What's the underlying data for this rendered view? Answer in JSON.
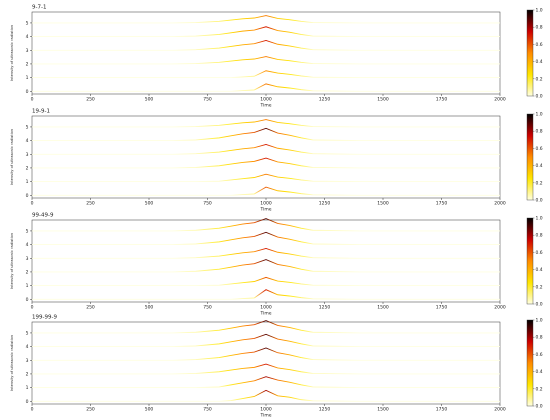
{
  "chart_data": [
    {
      "type": "line",
      "title": "9-7-1",
      "xlabel": "Time",
      "ylabel": "Intensity of ultrasonic radiation",
      "x": [
        0,
        200,
        400,
        600,
        700,
        800,
        850,
        900,
        950,
        1000,
        1050,
        1100,
        1150,
        1200,
        1400,
        1600,
        1800,
        2000
      ],
      "xlim": [
        0,
        2000
      ],
      "xticks": [
        0,
        250,
        500,
        750,
        1000,
        1250,
        1500,
        1750,
        2000
      ],
      "ylim": [
        -0.2,
        5.8
      ],
      "yticks": [
        0,
        1,
        2,
        3,
        4,
        5
      ],
      "colormap": [
        "#ffffe0",
        "#ffe600",
        "#ff8c00",
        "#cc0000",
        "#000000"
      ],
      "clim": [
        0,
        1
      ],
      "colorbar_ticks": [
        {
          "value": 0,
          "label": "0.0"
        },
        0.2,
        0.4,
        0.6,
        0.8,
        {
          "value": 1,
          "label": "1.0"
        }
      ],
      "series": [
        {
          "values": [
            5,
            5,
            5,
            5,
            5.03,
            5.12,
            5.21,
            5.3,
            5.36,
            5.54,
            5.33,
            5.24,
            5.12,
            5.03,
            5,
            5,
            5,
            5
          ]
        },
        {
          "values": [
            4,
            4,
            4,
            4,
            4.04,
            4.16,
            4.28,
            4.4,
            4.48,
            4.72,
            4.44,
            4.32,
            4.16,
            4.04,
            4,
            4,
            4,
            4
          ]
        },
        {
          "values": [
            3,
            3,
            3,
            3,
            3.04,
            3.16,
            3.28,
            3.4,
            3.48,
            3.72,
            3.44,
            3.32,
            3.16,
            3.04,
            3,
            3,
            3,
            3
          ]
        },
        {
          "values": [
            2,
            2,
            2,
            2,
            2.03,
            2.12,
            2.21,
            2.3,
            2.36,
            2.54,
            2.33,
            2.24,
            2.12,
            2.03,
            2,
            2,
            2,
            2
          ]
        },
        {
          "values": [
            1,
            1,
            1,
            1,
            1,
            1,
            1,
            1.05,
            1.1,
            1.5,
            1.33,
            1.24,
            1.12,
            1.03,
            1,
            1,
            1,
            1
          ]
        },
        {
          "values": [
            0,
            0,
            0,
            0,
            0,
            0,
            0,
            0.05,
            0.1,
            0.54,
            0.33,
            0.24,
            0.12,
            0.03,
            0,
            0,
            0,
            0
          ]
        }
      ]
    },
    {
      "type": "line",
      "title": "19-9-1",
      "xlabel": "Time",
      "ylabel": "Intensity of ultrasonic radiation",
      "x": [
        0,
        200,
        400,
        600,
        700,
        800,
        850,
        900,
        950,
        1000,
        1050,
        1100,
        1150,
        1200,
        1400,
        1600,
        1800,
        2000
      ],
      "xlim": [
        0,
        2000
      ],
      "xticks": [
        0,
        250,
        500,
        750,
        1000,
        1250,
        1500,
        1750,
        2000
      ],
      "ylim": [
        -0.2,
        5.8
      ],
      "yticks": [
        0,
        1,
        2,
        3,
        4,
        5
      ],
      "colormap": [
        "#ffffe0",
        "#ffe600",
        "#ff8c00",
        "#cc0000",
        "#000000"
      ],
      "clim": [
        0,
        1
      ],
      "colorbar_ticks": [
        {
          "value": 0,
          "label": "0.0"
        },
        0.2,
        0.4,
        0.6,
        0.8,
        {
          "value": 1,
          "label": "1.0"
        }
      ],
      "series": [
        {
          "values": [
            5,
            5,
            5,
            5,
            5.03,
            5.12,
            5.21,
            5.3,
            5.36,
            5.54,
            5.33,
            5.24,
            5.12,
            5.03,
            5,
            5,
            5,
            5
          ]
        },
        {
          "values": [
            4,
            4,
            4,
            4,
            4.05,
            4.2,
            4.35,
            4.5,
            4.6,
            4.9,
            4.55,
            4.4,
            4.2,
            4.05,
            4,
            4,
            4,
            4
          ]
        },
        {
          "values": [
            3,
            3,
            3,
            3,
            3.04,
            3.16,
            3.28,
            3.4,
            3.48,
            3.72,
            3.44,
            3.32,
            3.16,
            3.04,
            3,
            3,
            3,
            3
          ]
        },
        {
          "values": [
            2,
            2,
            2,
            2,
            2.04,
            2.16,
            2.28,
            2.4,
            2.48,
            2.72,
            2.44,
            2.32,
            2.16,
            2.04,
            2,
            2,
            2,
            2
          ]
        },
        {
          "values": [
            1,
            1,
            1,
            1,
            1,
            1.03,
            1.12,
            1.21,
            1.3,
            1.54,
            1.33,
            1.24,
            1.12,
            1.03,
            1,
            1,
            1,
            1
          ]
        },
        {
          "values": [
            0,
            0,
            0,
            0,
            0,
            0,
            0,
            0.05,
            0.1,
            0.6,
            0.33,
            0.24,
            0.12,
            0.03,
            0,
            0,
            0,
            0
          ]
        }
      ]
    },
    {
      "type": "line",
      "title": "99-49-9",
      "xlabel": "Time",
      "ylabel": "Intensity of ultrasonic radiation",
      "x": [
        0,
        200,
        400,
        600,
        700,
        800,
        850,
        900,
        950,
        1000,
        1050,
        1100,
        1150,
        1200,
        1400,
        1600,
        1800,
        2000
      ],
      "xlim": [
        0,
        2000
      ],
      "xticks": [
        0,
        250,
        500,
        750,
        1000,
        1250,
        1500,
        1750,
        2000
      ],
      "ylim": [
        -0.2,
        5.8
      ],
      "yticks": [
        0,
        1,
        2,
        3,
        4,
        5
      ],
      "colormap": [
        "#ffffe0",
        "#ffe600",
        "#ff8c00",
        "#cc0000",
        "#000000"
      ],
      "clim": [
        0,
        1
      ],
      "colorbar_ticks": [
        {
          "value": 0,
          "label": "0.0"
        },
        0.2,
        0.4,
        0.6,
        0.8,
        {
          "value": 1,
          "label": "1.0"
        }
      ],
      "series": [
        {
          "values": [
            5,
            5,
            5,
            5,
            5.05,
            5.2,
            5.35,
            5.5,
            5.6,
            5.9,
            5.55,
            5.4,
            5.2,
            5.05,
            5,
            5,
            5,
            5
          ]
        },
        {
          "values": [
            4,
            4,
            4,
            4,
            4.05,
            4.2,
            4.35,
            4.5,
            4.6,
            4.9,
            4.55,
            4.4,
            4.2,
            4.05,
            4,
            4,
            4,
            4
          ]
        },
        {
          "values": [
            3,
            3,
            3,
            3,
            3.04,
            3.16,
            3.28,
            3.4,
            3.48,
            3.72,
            3.44,
            3.32,
            3.16,
            3.04,
            3,
            3,
            3,
            3
          ]
        },
        {
          "values": [
            2,
            2,
            2,
            2,
            2.05,
            2.2,
            2.35,
            2.5,
            2.6,
            2.9,
            2.55,
            2.4,
            2.2,
            2.05,
            2,
            2,
            2,
            2
          ]
        },
        {
          "values": [
            1,
            1,
            1,
            1,
            1,
            1.03,
            1.12,
            1.21,
            1.3,
            1.6,
            1.33,
            1.24,
            1.12,
            1.03,
            1,
            1,
            1,
            1
          ]
        },
        {
          "values": [
            0,
            0,
            0,
            0,
            0,
            0,
            0,
            0.05,
            0.1,
            0.7,
            0.33,
            0.24,
            0.12,
            0.03,
            0,
            0,
            0,
            0
          ]
        }
      ]
    },
    {
      "type": "line",
      "title": "199-99-9",
      "xlabel": "Time",
      "ylabel": "Intensity of ultrasonic radiation",
      "x": [
        0,
        200,
        400,
        600,
        700,
        800,
        850,
        900,
        950,
        1000,
        1050,
        1100,
        1150,
        1200,
        1400,
        1600,
        1800,
        2000
      ],
      "xlim": [
        0,
        2000
      ],
      "xticks": [
        0,
        250,
        500,
        750,
        1000,
        1250,
        1500,
        1750,
        2000
      ],
      "ylim": [
        -0.2,
        5.8
      ],
      "yticks": [
        0,
        1,
        2,
        3,
        4,
        5
      ],
      "colormap": [
        "#ffffe0",
        "#ffe600",
        "#ff8c00",
        "#cc0000",
        "#000000"
      ],
      "clim": [
        0,
        1
      ],
      "colorbar_ticks": [
        {
          "value": 0,
          "label": "0.0"
        },
        0.2,
        0.4,
        0.6,
        0.8,
        {
          "value": 1,
          "label": "1.0"
        }
      ],
      "series": [
        {
          "values": [
            5,
            5,
            5,
            5,
            5.05,
            5.2,
            5.35,
            5.5,
            5.6,
            5.9,
            5.55,
            5.4,
            5.2,
            5.05,
            5,
            5,
            5,
            5
          ]
        },
        {
          "values": [
            4,
            4,
            4,
            4,
            4.05,
            4.2,
            4.35,
            4.5,
            4.6,
            4.9,
            4.55,
            4.4,
            4.2,
            4.05,
            4,
            4,
            4,
            4
          ]
        },
        {
          "values": [
            3,
            3,
            3,
            3,
            3.05,
            3.2,
            3.35,
            3.5,
            3.6,
            3.9,
            3.55,
            3.4,
            3.2,
            3.05,
            3,
            3,
            3,
            3
          ]
        },
        {
          "values": [
            2,
            2,
            2,
            2,
            2.04,
            2.16,
            2.28,
            2.4,
            2.48,
            2.72,
            2.44,
            2.32,
            2.16,
            2.04,
            2,
            2,
            2,
            2
          ]
        },
        {
          "values": [
            1,
            1,
            1,
            1,
            1,
            1.05,
            1.2,
            1.35,
            1.5,
            1.8,
            1.55,
            1.4,
            1.2,
            1.05,
            1,
            1,
            1,
            1
          ]
        },
        {
          "values": [
            0,
            0,
            0,
            0,
            0,
            0,
            0.05,
            0.2,
            0.35,
            0.8,
            0.4,
            0.3,
            0.12,
            0.03,
            0,
            0,
            0,
            0
          ]
        }
      ]
    }
  ]
}
